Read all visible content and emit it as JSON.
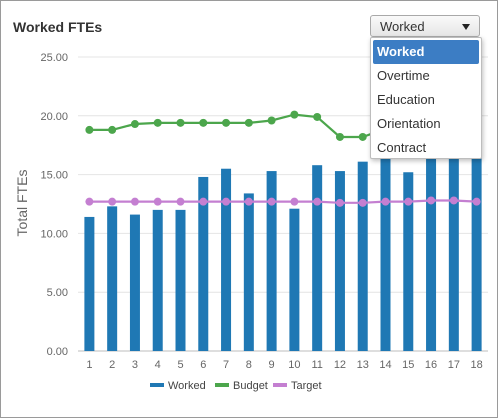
{
  "title": "Worked FTEs",
  "dropdown": {
    "selected": "Worked",
    "options": [
      "Worked",
      "Overtime",
      "Education",
      "Orientation",
      "Contract"
    ]
  },
  "colors": {
    "worked": "#1f78b4",
    "budget": "#4ca64c",
    "target": "#c47fd1"
  },
  "chart_data": {
    "type": "bar",
    "ylabel": "Total FTEs",
    "ylim": [
      0,
      25
    ],
    "yticks": [
      "0.00",
      "5.00",
      "10.00",
      "15.00",
      "20.00",
      "25.00"
    ],
    "categories": [
      "1",
      "2",
      "3",
      "4",
      "5",
      "6",
      "7",
      "8",
      "9",
      "10",
      "11",
      "12",
      "13",
      "14",
      "15",
      "16",
      "17",
      "18"
    ],
    "grid": "horizontal",
    "legend_position": "bottom",
    "series": [
      {
        "name": "Worked",
        "kind": "bar",
        "values": [
          11.4,
          12.3,
          11.6,
          12.0,
          12.0,
          14.8,
          15.5,
          13.4,
          15.3,
          12.1,
          15.8,
          15.3,
          16.1,
          16.4,
          15.2,
          16.4,
          16.4,
          16.4
        ]
      },
      {
        "name": "Budget",
        "kind": "line",
        "values": [
          18.8,
          18.8,
          19.3,
          19.4,
          19.4,
          19.4,
          19.4,
          19.4,
          19.6,
          20.1,
          19.9,
          18.2,
          18.2,
          18.9,
          18.9,
          18.9,
          18.9,
          18.9
        ]
      },
      {
        "name": "Target",
        "kind": "line",
        "values": [
          12.7,
          12.7,
          12.7,
          12.7,
          12.7,
          12.7,
          12.7,
          12.7,
          12.7,
          12.7,
          12.7,
          12.6,
          12.6,
          12.7,
          12.7,
          12.8,
          12.8,
          12.7
        ]
      }
    ]
  }
}
